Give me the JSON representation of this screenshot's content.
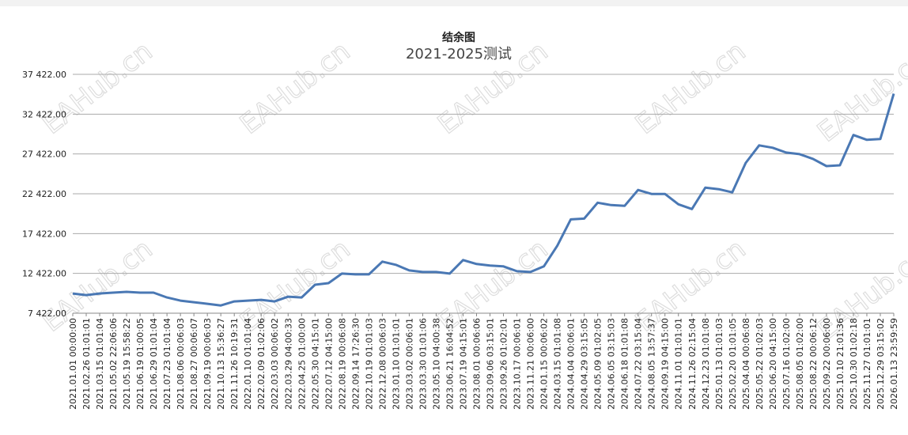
{
  "watermark": "EAHub.cn",
  "chart_data": {
    "type": "line",
    "title": "结余图",
    "subtitle": "2021-2025测试",
    "color": "#4a78b4",
    "grid": true,
    "ylim": [
      7422,
      37422
    ],
    "yticks": [
      {
        "value": 7422,
        "label": "7 422.00"
      },
      {
        "value": 12422,
        "label": "12 422.00"
      },
      {
        "value": 17422,
        "label": "17 422.00"
      },
      {
        "value": 22422,
        "label": "22 422.00"
      },
      {
        "value": 27422,
        "label": "27 422.00"
      },
      {
        "value": 32422,
        "label": "32 422.00"
      },
      {
        "value": 37422,
        "label": "37 422.00"
      }
    ],
    "categories": [
      "2021.01.01 00:00:00",
      "2021.02.26 01:01:01",
      "2021.03.15 01:01:04",
      "2021.05.02 22:06:06",
      "2021.05.19 15:58:22",
      "2021.06.19 01:00:05",
      "2021.06.29 01:01:04",
      "2021.07.23 01:01:04",
      "2021.08.06 00:06:03",
      "2021.08.27 00:06:07",
      "2021.09.19 00:06:03",
      "2021.10.13 15:36:27",
      "2021.11.26 10:19:31",
      "2022.01.10 01:01:04",
      "2022.02.09 01:02:06",
      "2022.03.03 00:06:02",
      "2022.03.29 04:00:33",
      "2022.04.25 01:00:00",
      "2022.05.30 04:15:01",
      "2022.07.12 04:15:00",
      "2022.08.19 00:06:08",
      "2022.09.14 17:26:30",
      "2022.10.19 01:01:03",
      "2022.12.08 00:06:03",
      "2023.01.10 01:01:01",
      "2023.03.02 00:06:01",
      "2023.03.30 01:01:06",
      "2023.05.10 04:00:38",
      "2023.06.21 16:04:52",
      "2023.07.19 04:15:01",
      "2023.08.01 00:06:06",
      "2023.09.06 03:15:01",
      "2023.09.26 01:02:01",
      "2023.10.17 00:06:01",
      "2023.11.21 00:06:00",
      "2024.01.15 00:06:02",
      "2024.03.15 01:01:08",
      "2024.04.04 00:06:01",
      "2024.04.29 03:15:05",
      "2024.05.09 01:02:05",
      "2024.06.05 03:15:03",
      "2024.06.18 01:01:08",
      "2024.07.22 03:15:04",
      "2024.08.05 13:57:37",
      "2024.09.19 04:15:00",
      "2024.11.01 01:01:01",
      "2024.11.26 02:15:04",
      "2024.12.23 01:01:08",
      "2025.01.13 01:01:03",
      "2025.02.20 01:01:05",
      "2025.04.04 00:06:08",
      "2025.05.22 01:02:03",
      "2025.06.20 04:15:00",
      "2025.07.16 01:02:00",
      "2025.08.05 01:02:00",
      "2025.08.22 00:06:12",
      "2025.09.22 00:06:00",
      "2025.10.10 21:01:36",
      "2025.10.30 01:02:18",
      "2025.11.27 01:01:01",
      "2025.12.29 03:15:02",
      "2026.01.13 23:59:59"
    ],
    "values": [
      9900,
      9700,
      9900,
      10000,
      10100,
      10000,
      10000,
      9400,
      9000,
      8800,
      8600,
      8400,
      8900,
      9000,
      9100,
      8900,
      9500,
      9400,
      11000,
      11200,
      12400,
      12300,
      12300,
      13900,
      13500,
      12800,
      12600,
      12600,
      12400,
      14100,
      13600,
      13400,
      13300,
      12700,
      12600,
      13300,
      15900,
      19200,
      19300,
      21300,
      21000,
      20900,
      22900,
      22400,
      22400,
      21100,
      20500,
      23200,
      23000,
      22600,
      26300,
      28500,
      28200,
      27600,
      27400,
      26800,
      25900,
      26000,
      29800,
      29200,
      29300,
      35000
    ]
  }
}
